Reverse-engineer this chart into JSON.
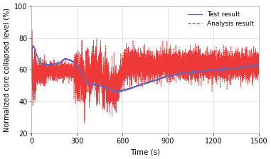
{
  "xlabel": "Time (s)",
  "ylabel": "Normalized core collapsed level (%)",
  "xlim": [
    0,
    1500
  ],
  "ylim": [
    20,
    100
  ],
  "yticks": [
    20,
    40,
    60,
    80,
    100
  ],
  "xticks": [
    0,
    300,
    600,
    900,
    1200,
    1500
  ],
  "test_color": "#6666bb",
  "analysis_color": "#ee2222",
  "bg_color": "#ffffff",
  "grid_color": "#cccccc",
  "legend_labels": [
    "Test result",
    "Analysis result"
  ],
  "seed": 7
}
